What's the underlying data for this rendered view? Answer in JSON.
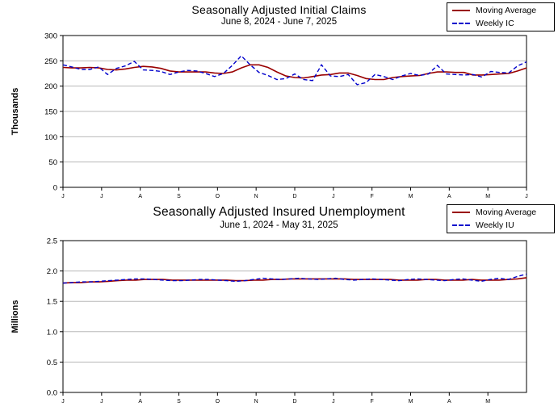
{
  "page": {
    "background": "#ffffff"
  },
  "chart_data": [
    {
      "type": "line",
      "title": "Seasonally Adjusted Initial Claims",
      "subtitle": "June 8, 2024 - June 7, 2025",
      "ylabel": "Thousands",
      "ylim": [
        0,
        300
      ],
      "yticks": [
        300,
        250,
        200,
        150,
        100,
        50,
        0
      ],
      "ytick_labels": [
        "300",
        "250",
        "200",
        "150",
        "100",
        "50",
        "0"
      ],
      "xticklabels": [
        "J",
        "J",
        "A",
        "S",
        "O",
        "N",
        "D",
        "J",
        "F",
        "M",
        "A",
        "M",
        "J"
      ],
      "x_intervals": 12,
      "grid": true,
      "legend_position": "top-right",
      "series": [
        {
          "name": "Moving Average",
          "color": "#990000",
          "style": "solid",
          "values": [
            237,
            236,
            236,
            237,
            236,
            233,
            232,
            234,
            237,
            239,
            238,
            235,
            230,
            228,
            228,
            228,
            228,
            226,
            225,
            228,
            236,
            242,
            242,
            237,
            228,
            220,
            217,
            216,
            219,
            222,
            223,
            226,
            226,
            221,
            215,
            213,
            213,
            217,
            219,
            220,
            221,
            225,
            228,
            228,
            227,
            227,
            222,
            222,
            223,
            224,
            225,
            230,
            236
          ]
        },
        {
          "name": "Weekly IC",
          "color": "#0000CC",
          "style": "dashed",
          "values": [
            242,
            238,
            233,
            233,
            238,
            223,
            235,
            240,
            249,
            232,
            231,
            229,
            223,
            228,
            231,
            230,
            225,
            219,
            225,
            241,
            260,
            242,
            227,
            221,
            213,
            215,
            224,
            213,
            211,
            242,
            220,
            219,
            223,
            203,
            207,
            223,
            219,
            213,
            220,
            225,
            221,
            224,
            241,
            224,
            223,
            222,
            223,
            218,
            229,
            227,
            226,
            240,
            248
          ]
        }
      ]
    },
    {
      "type": "line",
      "title": "Seasonally Adjusted Insured Unemployment",
      "subtitle": "June 1, 2024 - May 31, 2025",
      "ylabel": "Millions",
      "ylim": [
        0,
        2.5
      ],
      "yticks": [
        2.5,
        2.0,
        1.5,
        1.0,
        0.5,
        0
      ],
      "ytick_labels": [
        "2.5",
        "2.0",
        "1.5",
        "1.0",
        "0.5",
        "0.0"
      ],
      "xticklabels": [
        "J",
        "J",
        "A",
        "S",
        "O",
        "N",
        "D",
        "J",
        "F",
        "M",
        "A",
        "M"
      ],
      "x_intervals": 12,
      "grid": true,
      "legend_position": "top-right",
      "series": [
        {
          "name": "Moving Average",
          "color": "#990000",
          "style": "solid",
          "values": [
            1.8,
            1.81,
            1.81,
            1.82,
            1.82,
            1.83,
            1.84,
            1.85,
            1.85,
            1.86,
            1.86,
            1.86,
            1.85,
            1.85,
            1.85,
            1.85,
            1.85,
            1.85,
            1.85,
            1.84,
            1.84,
            1.85,
            1.85,
            1.86,
            1.86,
            1.87,
            1.87,
            1.87,
            1.87,
            1.87,
            1.87,
            1.87,
            1.86,
            1.86,
            1.86,
            1.86,
            1.86,
            1.85,
            1.85,
            1.85,
            1.86,
            1.86,
            1.85,
            1.85,
            1.85,
            1.86,
            1.85,
            1.85,
            1.85,
            1.86,
            1.87,
            1.89
          ]
        },
        {
          "name": "Weekly IU",
          "color": "#0000CC",
          "style": "dashed",
          "values": [
            1.8,
            1.81,
            1.82,
            1.82,
            1.83,
            1.84,
            1.85,
            1.86,
            1.87,
            1.87,
            1.86,
            1.85,
            1.84,
            1.84,
            1.85,
            1.86,
            1.86,
            1.85,
            1.84,
            1.83,
            1.84,
            1.86,
            1.88,
            1.87,
            1.86,
            1.87,
            1.88,
            1.87,
            1.86,
            1.87,
            1.88,
            1.86,
            1.85,
            1.86,
            1.87,
            1.86,
            1.85,
            1.84,
            1.86,
            1.87,
            1.86,
            1.85,
            1.84,
            1.86,
            1.87,
            1.85,
            1.83,
            1.86,
            1.88,
            1.86,
            1.91,
            1.95
          ]
        }
      ]
    }
  ]
}
